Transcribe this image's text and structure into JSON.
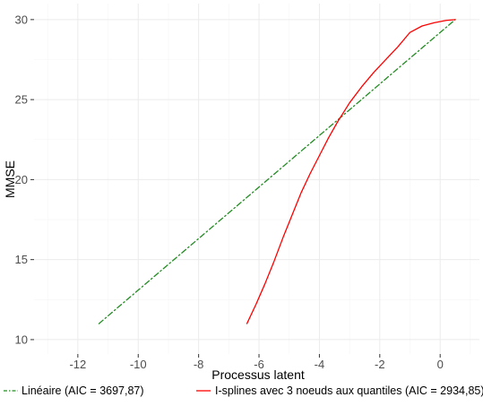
{
  "chart_data": {
    "type": "line",
    "title": "",
    "xlabel": "Processus latent",
    "ylabel": "MMSE",
    "xlim": [
      -13.45,
      1.3
    ],
    "ylim": [
      9.1,
      31.0
    ],
    "x_ticks": [
      -12,
      -10,
      -8,
      -6,
      -4,
      -2,
      0
    ],
    "x_tick_labels": [
      "-12",
      "-10",
      "-8",
      "-6",
      "-4",
      "-2",
      "0"
    ],
    "y_ticks": [
      10,
      15,
      20,
      25,
      30
    ],
    "y_tick_labels": [
      "10",
      "15",
      "20",
      "25",
      "30"
    ],
    "grid": true,
    "legend_position": "bottom",
    "series": [
      {
        "name": "Linéaire (AIC = 3697,87)",
        "color": "#228B22",
        "linestyle": "dashdot",
        "x": [
          -11.3,
          0.5
        ],
        "y": [
          11.0,
          30.0
        ]
      },
      {
        "name": "I-splines avec 3 noeuds aux quantiles (AIC = 2934,85)",
        "color": "#FF0000",
        "linestyle": "solid",
        "x": [
          -6.4,
          -6.1,
          -5.8,
          -5.5,
          -5.2,
          -4.9,
          -4.6,
          -4.3,
          -4.0,
          -3.7,
          -3.4,
          -3.0,
          -2.6,
          -2.2,
          -1.8,
          -1.4,
          -1.0,
          -0.6,
          -0.2,
          0.2,
          0.5
        ],
        "y": [
          11.0,
          12.2,
          13.5,
          14.9,
          16.4,
          17.8,
          19.2,
          20.4,
          21.5,
          22.6,
          23.6,
          24.8,
          25.8,
          26.7,
          27.5,
          28.3,
          29.2,
          29.6,
          29.8,
          29.95,
          30.0
        ]
      }
    ]
  }
}
